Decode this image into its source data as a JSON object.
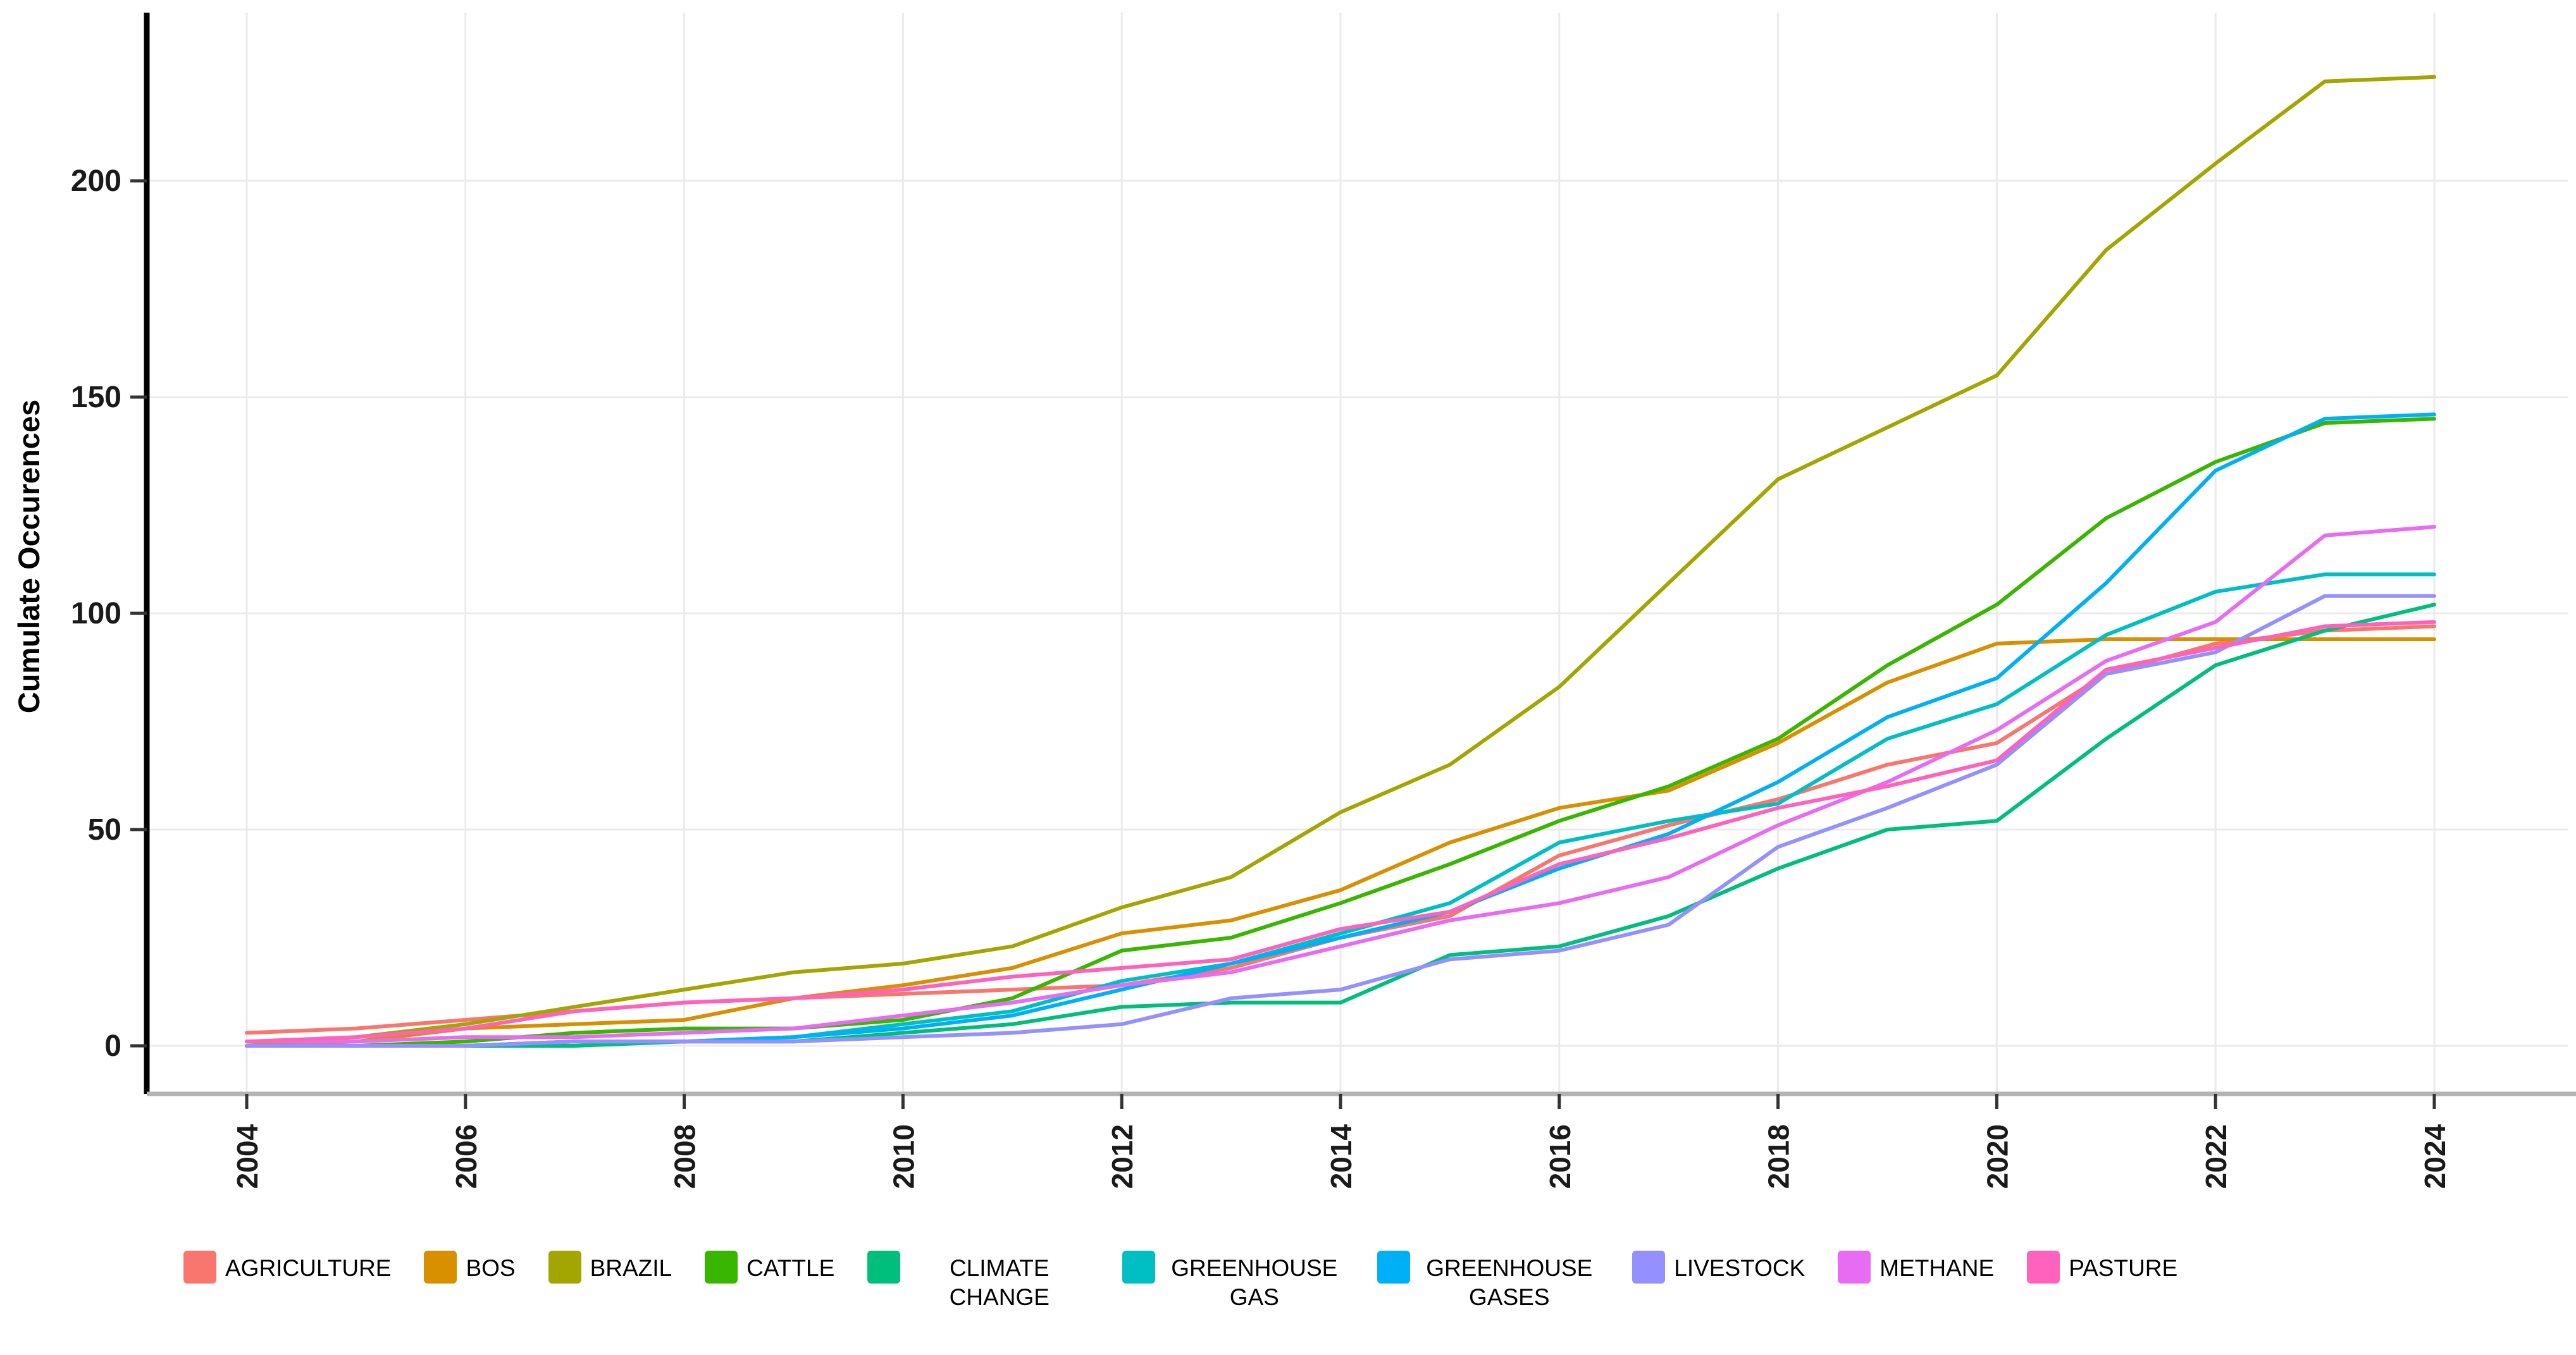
{
  "chart_data": {
    "type": "line",
    "title": "",
    "xlabel": "",
    "ylabel": "Cumulate Occurences",
    "x": [
      2004,
      2005,
      2006,
      2007,
      2008,
      2009,
      2010,
      2011,
      2012,
      2013,
      2014,
      2015,
      2016,
      2017,
      2018,
      2019,
      2020,
      2021,
      2022,
      2023,
      2024
    ],
    "x_tick_labels": [
      "2004",
      "2006",
      "2008",
      "2010",
      "2012",
      "2014",
      "2016",
      "2018",
      "2020",
      "2022",
      "2024"
    ],
    "y_ticks": [
      0,
      50,
      100,
      150,
      200
    ],
    "ylim": [
      0,
      235
    ],
    "grid": true,
    "legend_position": "bottom",
    "axis_colors": {
      "y_axis": "#000000",
      "x_axis": "#b3b3b3",
      "tick": "#333333",
      "gridline": "#ebebeb",
      "tick_label": "#1a1a1a"
    },
    "series": [
      {
        "name": "AGRICULTURE",
        "color": "#F8766D",
        "values": [
          3,
          4,
          6,
          8,
          10,
          11,
          12,
          13,
          14,
          18,
          25,
          30,
          44,
          51,
          57,
          65,
          70,
          86,
          93,
          96,
          97
        ]
      },
      {
        "name": "BOS",
        "color": "#D89000",
        "values": [
          0,
          1,
          4,
          5,
          6,
          11,
          14,
          18,
          26,
          29,
          36,
          47,
          55,
          59,
          70,
          84,
          93,
          94,
          94,
          94,
          94
        ]
      },
      {
        "name": "BRAZIL",
        "color": "#A3A500",
        "values": [
          0,
          2,
          5,
          9,
          13,
          17,
          19,
          23,
          32,
          39,
          54,
          65,
          83,
          107,
          131,
          143,
          155,
          184,
          204,
          223,
          224
        ]
      },
      {
        "name": "CATTLE",
        "color": "#39B600",
        "values": [
          0,
          0,
          1,
          3,
          4,
          4,
          6,
          11,
          22,
          25,
          33,
          42,
          52,
          60,
          71,
          88,
          102,
          122,
          135,
          144,
          145
        ]
      },
      {
        "name": "CLIMATE CHANGE",
        "color": "#00BF7D",
        "values": [
          0,
          0,
          0,
          0,
          1,
          1,
          3,
          5,
          9,
          10,
          10,
          21,
          23,
          30,
          41,
          50,
          52,
          71,
          88,
          96,
          102
        ]
      },
      {
        "name": "GREENHOUSE GAS",
        "color": "#00BFC4",
        "values": [
          0,
          0,
          0,
          1,
          1,
          2,
          5,
          8,
          15,
          19,
          26,
          33,
          47,
          52,
          56,
          71,
          79,
          95,
          105,
          109,
          109
        ]
      },
      {
        "name": "GREENHOUSE GASES",
        "color": "#00B0F6",
        "values": [
          0,
          0,
          0,
          1,
          1,
          2,
          4,
          7,
          13,
          19,
          25,
          31,
          41,
          49,
          61,
          76,
          85,
          107,
          133,
          145,
          146
        ]
      },
      {
        "name": "LIVESTOCK",
        "color": "#9590FF",
        "values": [
          0,
          0,
          0,
          1,
          1,
          1,
          2,
          3,
          5,
          11,
          13,
          20,
          22,
          28,
          46,
          55,
          65,
          86,
          91,
          104,
          104
        ]
      },
      {
        "name": "METHANE",
        "color": "#E76BF3",
        "values": [
          1,
          1,
          2,
          2,
          3,
          4,
          7,
          10,
          14,
          17,
          23,
          29,
          33,
          39,
          51,
          61,
          73,
          89,
          98,
          118,
          120
        ]
      },
      {
        "name": "PASTURE",
        "color": "#FF62BC",
        "values": [
          1,
          2,
          4,
          8,
          10,
          11,
          13,
          16,
          18,
          20,
          27,
          31,
          42,
          48,
          55,
          60,
          66,
          87,
          92,
          97,
          98
        ]
      }
    ]
  }
}
